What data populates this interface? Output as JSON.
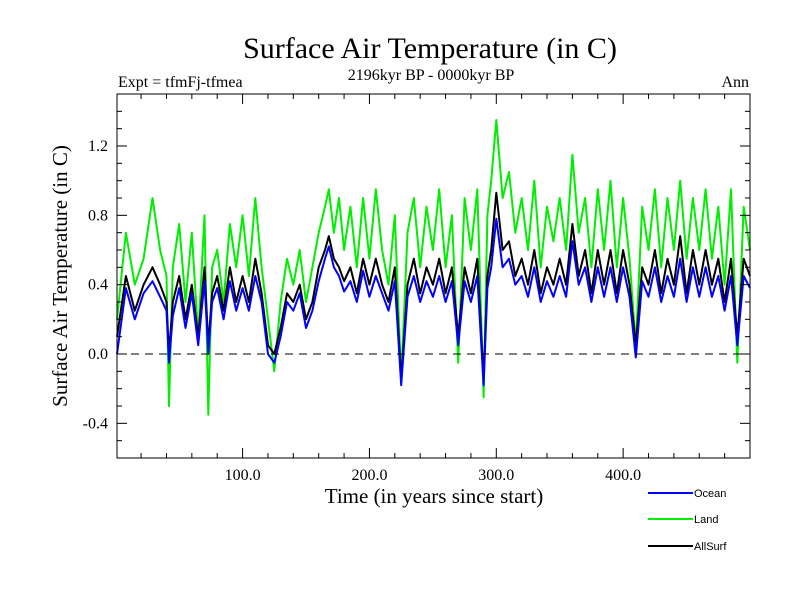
{
  "chart_data": {
    "type": "line",
    "title": "Surface Air Temperature (in C)",
    "subtitle": "2196kyr BP - 0000kyr BP",
    "left_label": "Expt = tfmFj-tfmea",
    "right_label": "Ann",
    "xlabel": "Time (in years since start)",
    "ylabel": "Surface Air Temperature (in C)",
    "xlim": [
      1,
      500
    ],
    "ylim": [
      -0.6,
      1.5
    ],
    "xticks": [
      100,
      200,
      300,
      400
    ],
    "xtick_labels": [
      "100.0",
      "200.0",
      "300.0",
      "400.0"
    ],
    "yticks": [
      -0.4,
      0.0,
      0.4,
      0.8,
      1.2
    ],
    "ytick_labels": [
      "-0.4",
      "0.0",
      "0.4",
      "0.8",
      "1.2"
    ],
    "zero_line": 0.0,
    "legend_position": "bottom-right",
    "series": [
      {
        "name": "Land",
        "color": "#00ee00",
        "x": [
          1,
          8,
          15,
          22,
          29,
          35,
          40,
          42,
          45,
          50,
          55,
          60,
          65,
          70,
          73,
          76,
          80,
          85,
          90,
          95,
          100,
          105,
          110,
          115,
          120,
          125,
          130,
          135,
          140,
          145,
          150,
          155,
          160,
          165,
          168,
          172,
          176,
          180,
          185,
          190,
          195,
          200,
          205,
          210,
          215,
          220,
          225,
          230,
          235,
          240,
          245,
          250,
          255,
          260,
          265,
          270,
          275,
          280,
          285,
          290,
          293,
          296,
          300,
          305,
          310,
          315,
          320,
          325,
          330,
          335,
          340,
          345,
          350,
          355,
          360,
          365,
          370,
          375,
          380,
          385,
          390,
          395,
          400,
          405,
          410,
          415,
          420,
          425,
          430,
          435,
          440,
          445,
          450,
          455,
          460,
          465,
          470,
          475,
          480,
          485,
          490,
          495,
          500
        ],
        "values": [
          0.2,
          0.7,
          0.4,
          0.55,
          0.9,
          0.6,
          0.45,
          -0.3,
          0.5,
          0.75,
          0.3,
          0.7,
          0.1,
          0.8,
          -0.35,
          0.5,
          0.6,
          0.3,
          0.75,
          0.5,
          0.8,
          0.45,
          0.9,
          0.5,
          0.2,
          -0.1,
          0.3,
          0.55,
          0.4,
          0.6,
          0.3,
          0.5,
          0.7,
          0.85,
          0.95,
          0.7,
          0.9,
          0.6,
          0.85,
          0.5,
          0.9,
          0.55,
          0.95,
          0.6,
          0.4,
          0.8,
          -0.15,
          0.7,
          0.9,
          0.5,
          0.85,
          0.6,
          0.95,
          0.5,
          0.8,
          -0.05,
          0.9,
          0.6,
          0.95,
          -0.25,
          0.8,
          1.0,
          1.35,
          0.9,
          1.05,
          0.7,
          0.9,
          0.6,
          1.0,
          0.5,
          0.85,
          0.65,
          0.9,
          0.6,
          1.15,
          0.7,
          0.9,
          0.5,
          0.95,
          0.6,
          1.0,
          0.5,
          0.9,
          0.55,
          0.05,
          0.85,
          0.6,
          0.95,
          0.5,
          0.9,
          0.6,
          1.0,
          0.55,
          0.9,
          0.6,
          0.95,
          0.55,
          0.85,
          0.4,
          0.95,
          -0.05,
          0.85,
          0.6
        ]
      },
      {
        "name": "AllSurf",
        "color": "#000000",
        "x": [
          1,
          8,
          15,
          22,
          29,
          35,
          40,
          42,
          45,
          50,
          55,
          60,
          65,
          70,
          73,
          76,
          80,
          85,
          90,
          95,
          100,
          105,
          110,
          115,
          120,
          125,
          130,
          135,
          140,
          145,
          150,
          155,
          160,
          165,
          168,
          172,
          176,
          180,
          185,
          190,
          195,
          200,
          205,
          210,
          215,
          220,
          225,
          230,
          235,
          240,
          245,
          250,
          255,
          260,
          265,
          270,
          275,
          280,
          285,
          290,
          293,
          296,
          300,
          305,
          310,
          315,
          320,
          325,
          330,
          335,
          340,
          345,
          350,
          355,
          360,
          365,
          370,
          375,
          380,
          385,
          390,
          395,
          400,
          405,
          410,
          415,
          420,
          425,
          430,
          435,
          440,
          445,
          450,
          455,
          460,
          465,
          470,
          475,
          480,
          485,
          490,
          495,
          500
        ],
        "values": [
          0.1,
          0.45,
          0.25,
          0.4,
          0.5,
          0.4,
          0.3,
          0.0,
          0.3,
          0.45,
          0.2,
          0.4,
          0.1,
          0.5,
          0.05,
          0.35,
          0.45,
          0.25,
          0.5,
          0.3,
          0.45,
          0.3,
          0.55,
          0.35,
          0.05,
          0.0,
          0.15,
          0.35,
          0.3,
          0.4,
          0.2,
          0.3,
          0.5,
          0.6,
          0.68,
          0.55,
          0.5,
          0.42,
          0.5,
          0.35,
          0.55,
          0.4,
          0.55,
          0.4,
          0.3,
          0.5,
          -0.15,
          0.4,
          0.55,
          0.35,
          0.5,
          0.4,
          0.55,
          0.35,
          0.5,
          0.1,
          0.5,
          0.35,
          0.55,
          -0.15,
          0.45,
          0.6,
          0.93,
          0.6,
          0.65,
          0.45,
          0.55,
          0.4,
          0.6,
          0.35,
          0.5,
          0.4,
          0.55,
          0.4,
          0.75,
          0.45,
          0.6,
          0.35,
          0.6,
          0.4,
          0.6,
          0.35,
          0.6,
          0.4,
          0.05,
          0.5,
          0.4,
          0.6,
          0.35,
          0.55,
          0.4,
          0.68,
          0.35,
          0.6,
          0.4,
          0.6,
          0.4,
          0.55,
          0.3,
          0.55,
          0.1,
          0.55,
          0.45
        ]
      },
      {
        "name": "Ocean",
        "color": "#0000ff",
        "x": [
          1,
          8,
          15,
          22,
          29,
          35,
          40,
          42,
          45,
          50,
          55,
          60,
          65,
          70,
          73,
          76,
          80,
          85,
          90,
          95,
          100,
          105,
          110,
          115,
          120,
          125,
          130,
          135,
          140,
          145,
          150,
          155,
          160,
          165,
          168,
          172,
          176,
          180,
          185,
          190,
          195,
          200,
          205,
          210,
          215,
          220,
          225,
          230,
          235,
          240,
          245,
          250,
          255,
          260,
          265,
          270,
          275,
          280,
          285,
          290,
          293,
          296,
          300,
          305,
          310,
          315,
          320,
          325,
          330,
          335,
          340,
          345,
          350,
          355,
          360,
          365,
          370,
          375,
          380,
          385,
          390,
          395,
          400,
          405,
          410,
          415,
          420,
          425,
          430,
          435,
          440,
          445,
          450,
          455,
          460,
          465,
          470,
          475,
          480,
          485,
          490,
          495,
          500
        ],
        "values": [
          0.0,
          0.38,
          0.2,
          0.35,
          0.42,
          0.33,
          0.25,
          -0.05,
          0.22,
          0.38,
          0.15,
          0.35,
          0.05,
          0.42,
          0.0,
          0.3,
          0.38,
          0.2,
          0.42,
          0.25,
          0.38,
          0.25,
          0.45,
          0.3,
          0.0,
          -0.05,
          0.1,
          0.3,
          0.25,
          0.35,
          0.15,
          0.25,
          0.42,
          0.55,
          0.62,
          0.5,
          0.45,
          0.36,
          0.42,
          0.3,
          0.48,
          0.33,
          0.45,
          0.35,
          0.25,
          0.42,
          -0.18,
          0.33,
          0.45,
          0.3,
          0.42,
          0.33,
          0.45,
          0.3,
          0.42,
          0.05,
          0.42,
          0.3,
          0.45,
          -0.18,
          0.38,
          0.5,
          0.78,
          0.5,
          0.55,
          0.4,
          0.45,
          0.33,
          0.5,
          0.3,
          0.42,
          0.33,
          0.45,
          0.33,
          0.65,
          0.4,
          0.5,
          0.3,
          0.5,
          0.33,
          0.5,
          0.3,
          0.5,
          0.33,
          -0.02,
          0.42,
          0.33,
          0.5,
          0.3,
          0.45,
          0.33,
          0.55,
          0.3,
          0.5,
          0.33,
          0.5,
          0.33,
          0.45,
          0.25,
          0.45,
          0.05,
          0.45,
          0.38
        ]
      }
    ],
    "legend": [
      {
        "name": "Ocean",
        "color": "#0000ff"
      },
      {
        "name": "Land",
        "color": "#00ee00"
      },
      {
        "name": "AllSurf",
        "color": "#000000"
      }
    ]
  }
}
